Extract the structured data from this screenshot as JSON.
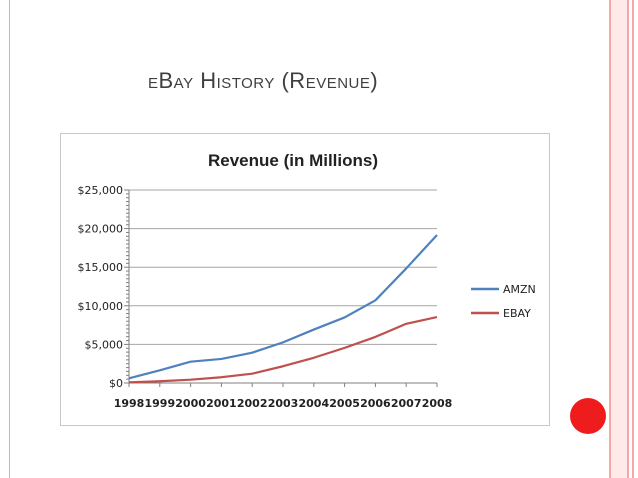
{
  "slide": {
    "title": "eBay History (Revenue)"
  },
  "colors": {
    "amzn": "#4f81bd",
    "ebay": "#c0504d",
    "accent_dot": "#ee1c1c"
  },
  "chart_data": {
    "type": "line",
    "title": "Revenue (in Millions)",
    "xlabel": "",
    "ylabel": "",
    "categories": [
      "1998",
      "1999",
      "2000",
      "2001",
      "2002",
      "2003",
      "2004",
      "2005",
      "2006",
      "2007",
      "2008"
    ],
    "y_ticks": [
      "$0",
      "$5,000",
      "$10,000",
      "$15,000",
      "$20,000",
      "$25,000"
    ],
    "ylim": [
      0,
      25000
    ],
    "grid": true,
    "legend": "right",
    "series": [
      {
        "name": "AMZN",
        "color": "#4f81bd",
        "values": [
          610,
          1640,
          2760,
          3120,
          3930,
          5260,
          6920,
          8490,
          10710,
          14840,
          19170
        ]
      },
      {
        "name": "EBAY",
        "color": "#c0504d",
        "values": [
          86,
          225,
          431,
          749,
          1210,
          2170,
          3270,
          4550,
          5970,
          7670,
          8540
        ]
      }
    ]
  }
}
